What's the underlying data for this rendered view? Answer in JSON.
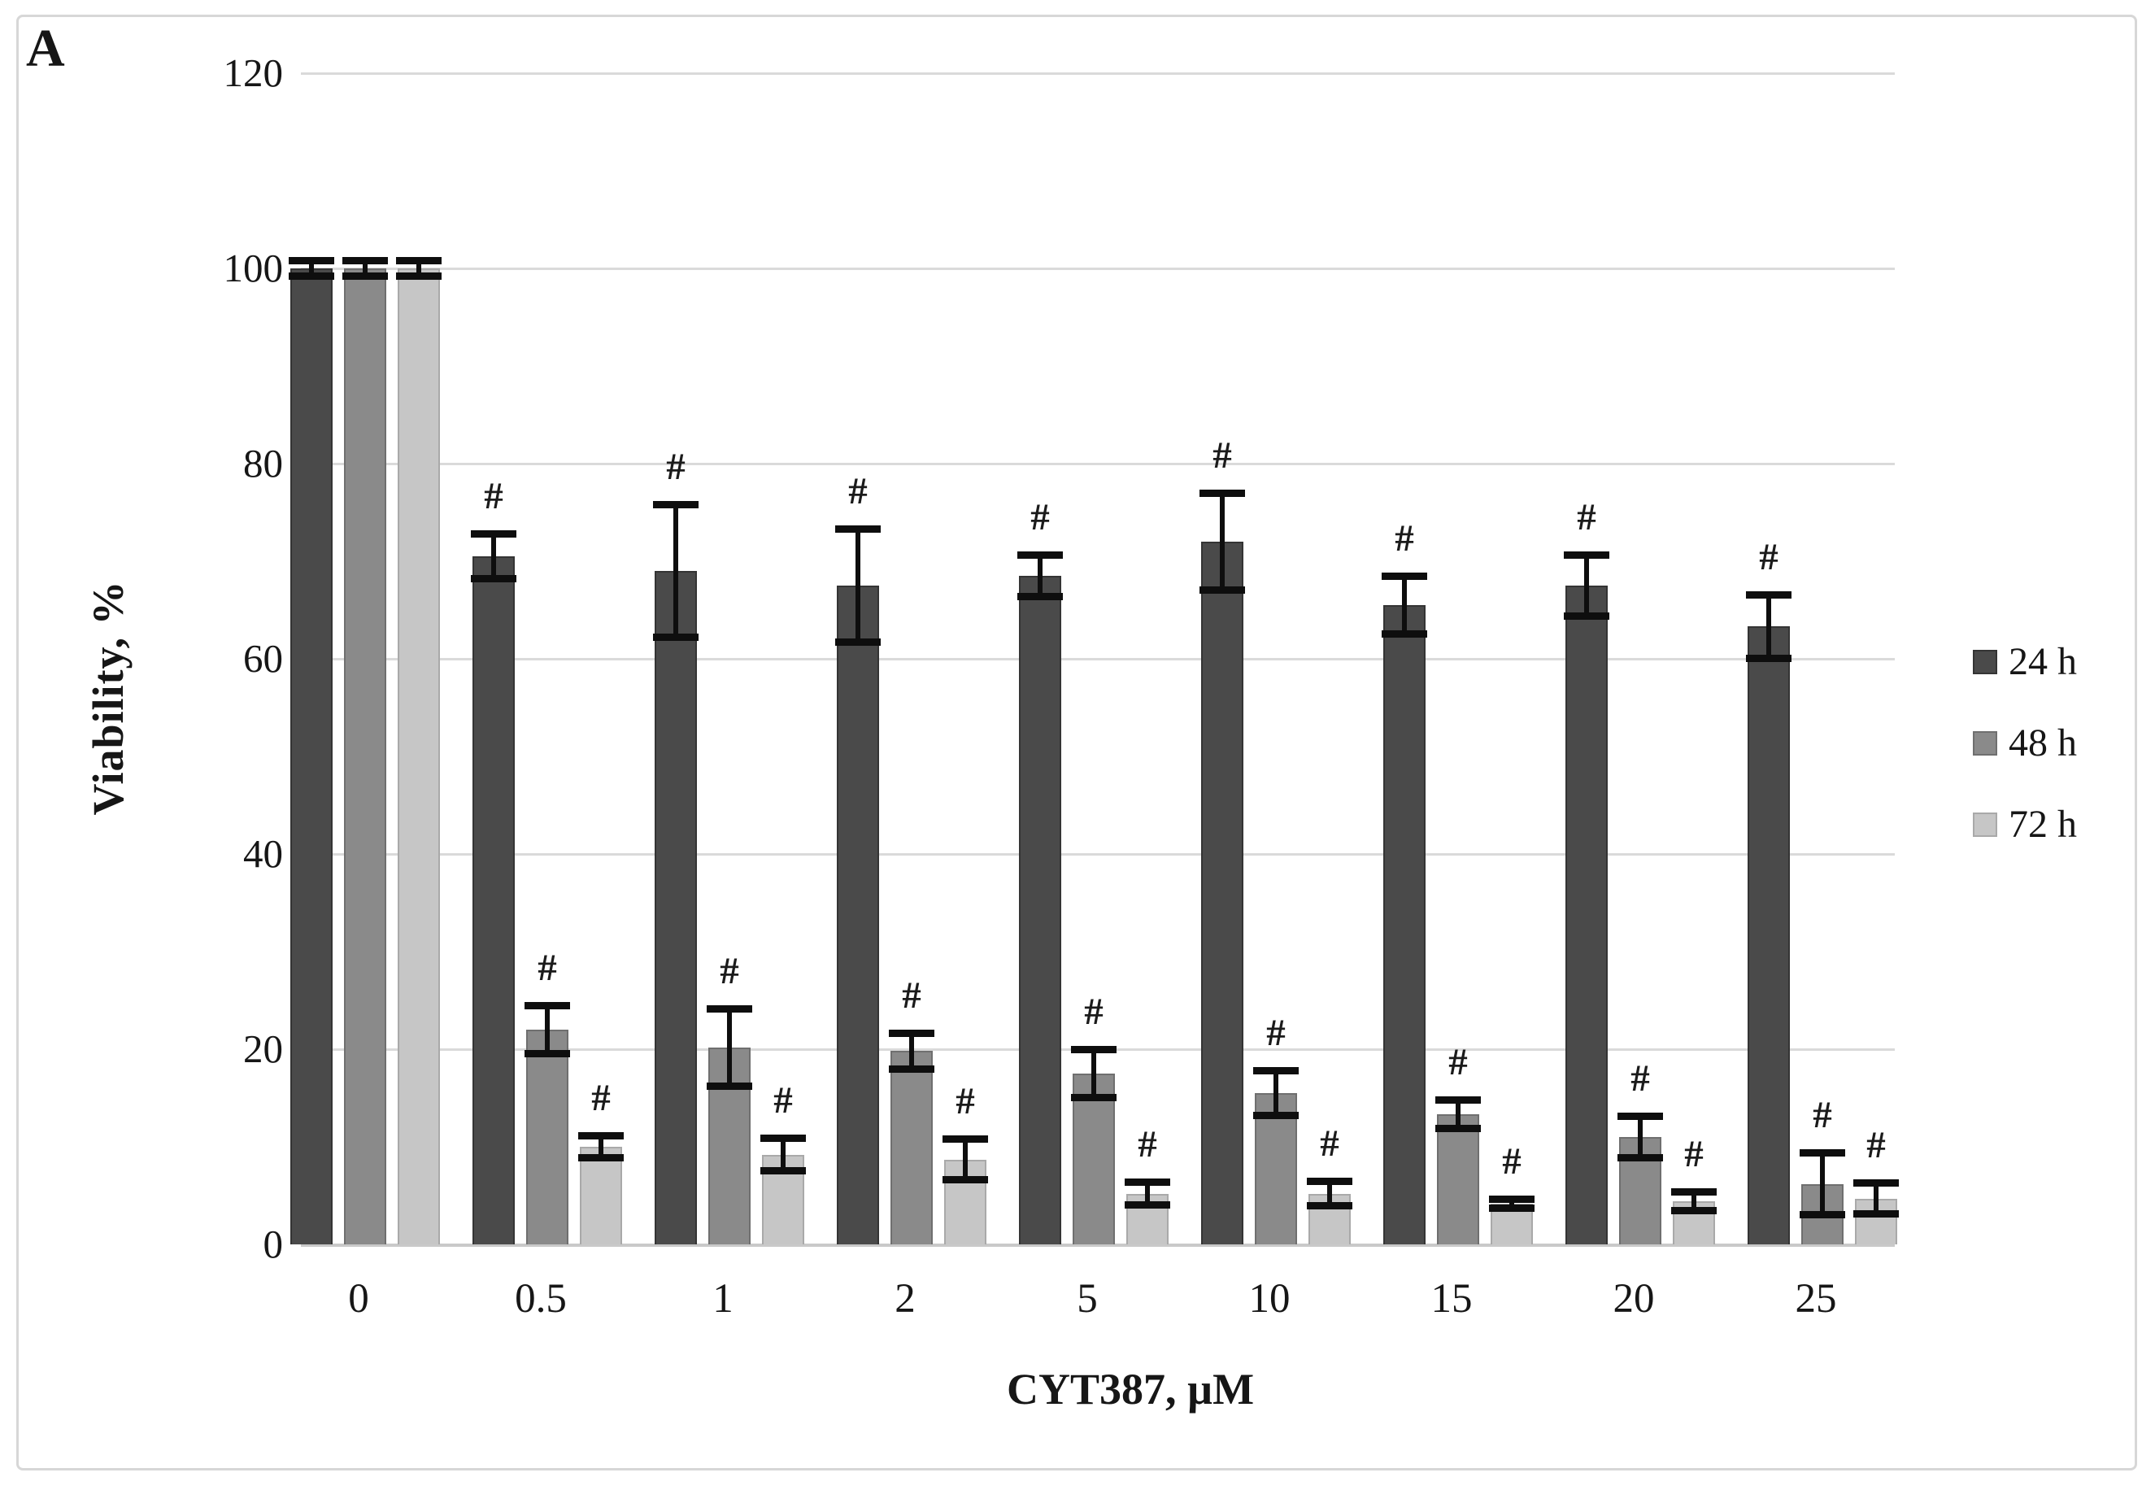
{
  "figure": {
    "panel_label": "A"
  },
  "chart_data": {
    "type": "bar",
    "title": "",
    "xlabel": "CYT387, µM",
    "ylabel": "Viability, %",
    "categories": [
      "0",
      "0.5",
      "1",
      "2",
      "5",
      "10",
      "15",
      "20",
      "25"
    ],
    "y_ticks": [
      0,
      20,
      40,
      60,
      80,
      100,
      120
    ],
    "ylim": [
      0,
      120
    ],
    "grid": "horizontal-only",
    "legend_position": "right-outside",
    "significance_symbol": "#",
    "significance_note": "# shown above error bar of every treated bar (all doses except 0)",
    "error_bar_color": "#0e0e0e",
    "series": [
      {
        "name": "24 h",
        "color": "#4a4a4a",
        "border_color": "#343434",
        "values": [
          100,
          70.5,
          69,
          67.5,
          68.5,
          72,
          65.5,
          67.5,
          63.3
        ],
        "errors": [
          0.8,
          2.3,
          6.8,
          5.8,
          2.2,
          5,
          3,
          3.2,
          3.3
        ],
        "sig": [
          0,
          1,
          1,
          1,
          1,
          1,
          1,
          1,
          1
        ]
      },
      {
        "name": "48 h",
        "color": "#8a8a8a",
        "border_color": "#6f6f6f",
        "values": [
          100,
          22,
          20.2,
          19.8,
          17.5,
          15.5,
          13.3,
          11,
          6.2
        ],
        "errors": [
          0.8,
          2.5,
          4,
          1.9,
          2.5,
          2.3,
          1.5,
          2.2,
          3.2
        ],
        "sig": [
          0,
          1,
          1,
          1,
          1,
          1,
          1,
          1,
          1
        ]
      },
      {
        "name": "72 h",
        "color": "#c6c6c6",
        "border_color": "#a9a9a9",
        "values": [
          100,
          10,
          9.2,
          8.7,
          5.2,
          5.2,
          4.2,
          4.4,
          4.7
        ],
        "errors": [
          0.8,
          1.2,
          1.7,
          2.1,
          1.2,
          1.3,
          0.5,
          1,
          1.6
        ],
        "sig": [
          0,
          1,
          1,
          1,
          1,
          1,
          1,
          1,
          1
        ]
      }
    ]
  }
}
